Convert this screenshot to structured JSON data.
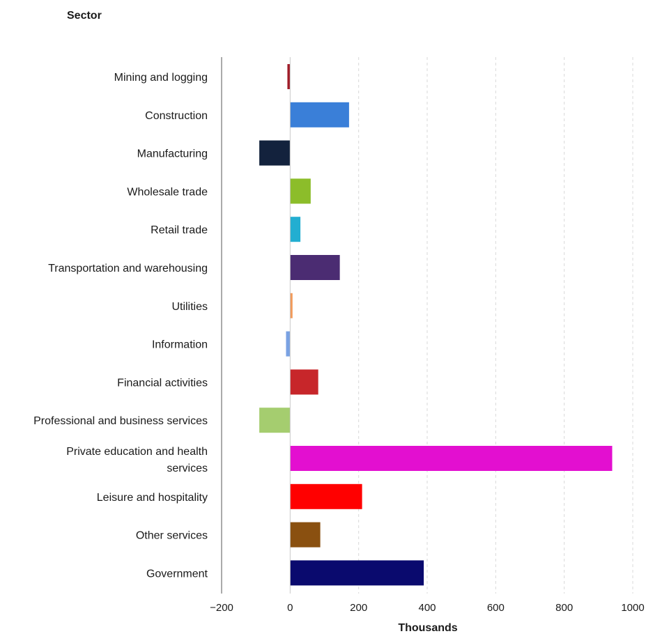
{
  "chart_data": {
    "type": "bar",
    "orientation": "horizontal",
    "title": "",
    "ylabel": "Sector",
    "xlabel": "Thousands",
    "xlim": [
      -200,
      1000
    ],
    "xticks": [
      "-200",
      "0",
      "200",
      "400",
      "600",
      "800",
      "1000"
    ],
    "grid": "vertical dashed",
    "categories": [
      "Mining and logging",
      "Construction",
      "Manufacturing",
      "Wholesale trade",
      "Retail trade",
      "Transportation and warehousing",
      "Utilities",
      "Information",
      "Financial activities",
      "Professional and business services",
      "Private education and health services",
      "Leisure and hospitality",
      "Other services",
      "Government"
    ],
    "values": [
      -8,
      172,
      -90,
      60,
      30,
      145,
      7,
      -12,
      82,
      -90,
      940,
      210,
      88,
      390
    ],
    "colors": [
      "#a01c28",
      "#3a7fd8",
      "#13223d",
      "#8cbd2a",
      "#22aed1",
      "#4b2c72",
      "#f29a5a",
      "#7aa2e3",
      "#c7262a",
      "#a5cd6f",
      "#e30fd0",
      "#ff0000",
      "#8a5010",
      "#0a0a6e"
    ]
  }
}
